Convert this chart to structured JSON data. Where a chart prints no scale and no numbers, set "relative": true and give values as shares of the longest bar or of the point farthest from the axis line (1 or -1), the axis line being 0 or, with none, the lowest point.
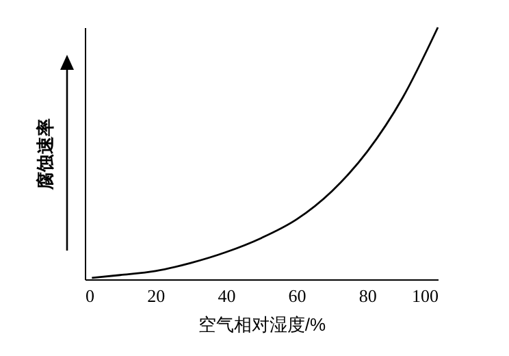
{
  "chart_data": {
    "type": "line",
    "relative": true,
    "xlabel": "空气相对湿度/%",
    "ylabel": "腐蚀速率",
    "x": [
      2,
      10,
      20,
      30,
      40,
      50,
      60,
      70,
      80,
      90,
      100
    ],
    "series": [
      {
        "color": "#000000",
        "values": [
          0.006,
          0.017,
          0.033,
          0.065,
          0.108,
          0.164,
          0.238,
          0.35,
          0.507,
          0.72,
          1
        ]
      }
    ],
    "xlim": [
      0,
      100
    ],
    "xticks": [
      0,
      20,
      40,
      60,
      80,
      100
    ],
    "grid": false,
    "marker": "none",
    "line_style": "solid"
  }
}
